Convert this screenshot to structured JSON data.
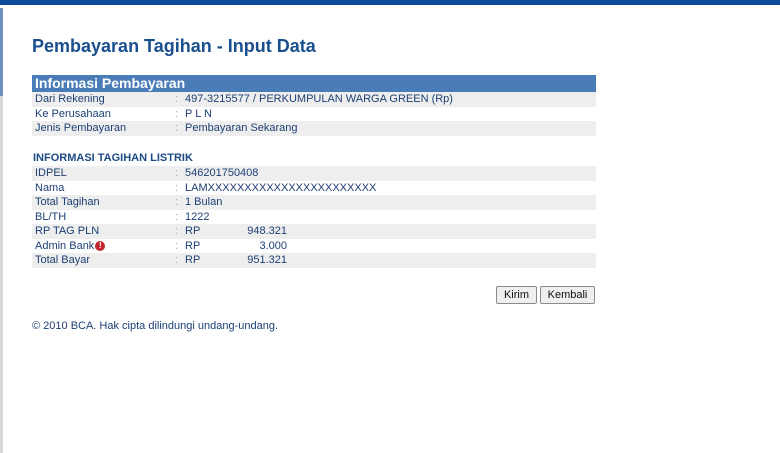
{
  "title": "Pembayaran Tagihan - Input Data",
  "payment": {
    "header": "Informasi Pembayaran",
    "rows": [
      {
        "label": "Dari Rekening",
        "value": "497-3215577 / PERKUMPULAN WARGA GREEN (Rp)"
      },
      {
        "label": "Ke Perusahaan",
        "value": "P L N"
      },
      {
        "label": "Jenis Pembayaran",
        "value": "Pembayaran Sekarang"
      }
    ]
  },
  "bill": {
    "header": "INFORMASI TAGIHAN LISTRIK",
    "rows": [
      {
        "label": "IDPEL",
        "value": "546201750408"
      },
      {
        "label": "Nama",
        "value": "LAMXXXXXXXXXXXXXXXXXXXXXXX"
      },
      {
        "label": "Total Tagihan",
        "value": "1 Bulan"
      },
      {
        "label": "BL/TH",
        "value": "1222"
      }
    ],
    "amounts": [
      {
        "label": "RP TAG PLN",
        "currency": "RP",
        "value": "948.321"
      },
      {
        "label": "Admin Bank",
        "currency": "RP",
        "value": "3.000",
        "icon": "info-icon",
        "icon_color": "#c0282d"
      },
      {
        "label": "Total Bayar",
        "currency": "RP",
        "value": "951.321"
      }
    ]
  },
  "buttons": {
    "submit": "Kirim",
    "back": "Kembali"
  },
  "footer": "©  2010 BCA. Hak cipta dilindungi undang-undang."
}
